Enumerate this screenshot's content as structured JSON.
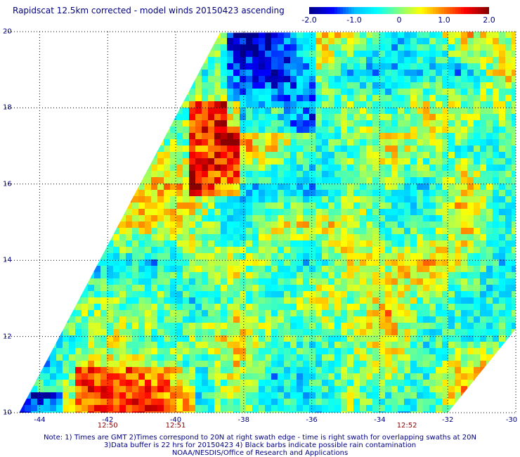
{
  "title": "Rapidscat 12.5km corrected - model winds 20150423 ascending",
  "colorbar": {
    "min": -2.0,
    "max": 2.0,
    "ticks": [
      "-2.0",
      "-1.0",
      "0",
      "1.0",
      "2.0"
    ],
    "tick_values": [
      -2.0,
      -1.0,
      0,
      1.0,
      2.0
    ],
    "colors": [
      "#00008b",
      "#0000ff",
      "#00bfff",
      "#00ffff",
      "#7fff7f",
      "#ffff00",
      "#ff8000",
      "#ff0000",
      "#8b0000"
    ]
  },
  "map": {
    "lon_range": [
      -45,
      -30
    ],
    "lat_range": [
      10,
      20
    ],
    "lon_ticks": [
      "-44",
      "-42",
      "-40",
      "-38",
      "-36",
      "-34",
      "-32",
      "-30"
    ],
    "lon_tick_values": [
      -44,
      -42,
      -40,
      -38,
      -36,
      -34,
      -32,
      -30
    ],
    "lat_ticks": [
      "10",
      "12",
      "14",
      "16",
      "18",
      "20"
    ],
    "lat_tick_values": [
      10,
      12,
      14,
      16,
      18,
      20
    ],
    "grid": "dotted",
    "swath": {
      "left_edge": [
        [
          -44.6,
          10.0
        ],
        [
          -38.7,
          19.97
        ]
      ],
      "right_edge": [
        [
          -32.0,
          10.0
        ],
        [
          -30.0,
          12.2
        ]
      ]
    }
  },
  "times": [
    {
      "label": "12:50",
      "lon": -42.0
    },
    {
      "label": "12:51",
      "lon": -40.0
    },
    {
      "label": "12:52",
      "lon": -33.2
    }
  ],
  "notes": [
    "Note: 1) Times are GMT 2)Times correspond to 20N at right swath edge - time is right swath for overlapping swaths at 20N",
    "3)Data buffer is 22 hrs for 20150423 4) Black barbs indicate possible rain contamination",
    "NOAA/NESDIS/Office of Research and Applications"
  ]
}
